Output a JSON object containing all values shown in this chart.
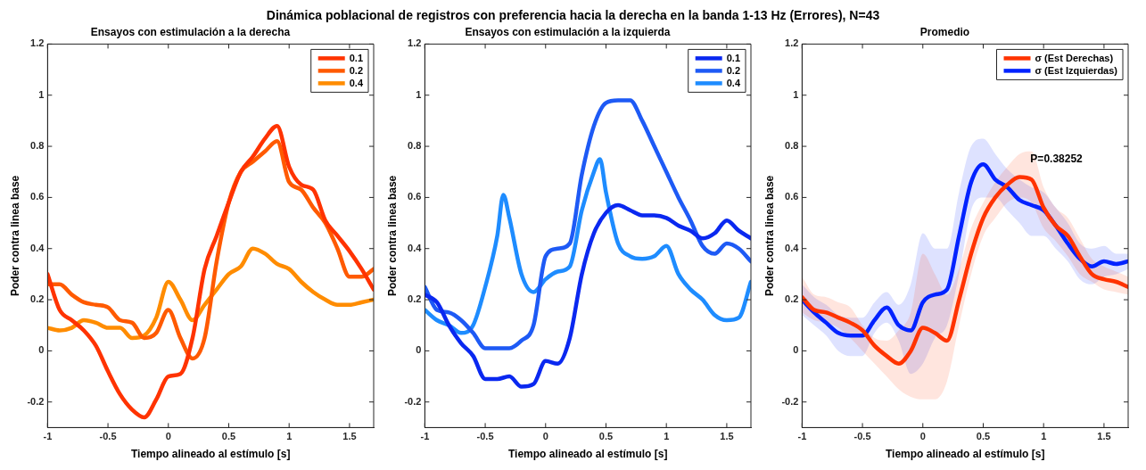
{
  "chart_data": [
    {
      "type": "line",
      "title": "Dinámica poblacional de registros con preferencia hacia la derecha en la banda 1-13 Hz (Errores), N=43",
      "subtitle": "Ensayos con estimulación a la derecha",
      "xlabel": "Tiempo alineado al estímulo [s]",
      "ylabel": "Poder contra linea base",
      "x": [
        -1,
        -0.9,
        -0.8,
        -0.7,
        -0.6,
        -0.5,
        -0.4,
        -0.3,
        -0.2,
        -0.1,
        0,
        0.1,
        0.2,
        0.3,
        0.4,
        0.5,
        0.6,
        0.7,
        0.8,
        0.9,
        1,
        1.1,
        1.2,
        1.3,
        1.4,
        1.5,
        1.6,
        1.7
      ],
      "series": [
        {
          "name": "0.1",
          "color": "#ff3300",
          "values": [
            0.3,
            0.16,
            0.12,
            0.08,
            0.02,
            -0.08,
            -0.17,
            -0.23,
            -0.26,
            -0.19,
            -0.1,
            -0.09,
            0.05,
            0.32,
            0.45,
            0.58,
            0.7,
            0.76,
            0.83,
            0.88,
            0.72,
            0.65,
            0.63,
            0.51,
            0.45,
            0.39,
            0.32,
            0.24
          ]
        },
        {
          "name": "0.2",
          "color": "#ff5a00",
          "values": [
            0.26,
            0.26,
            0.22,
            0.19,
            0.18,
            0.17,
            0.12,
            0.11,
            0.05,
            0.07,
            0.16,
            0.05,
            -0.03,
            0.05,
            0.35,
            0.58,
            0.7,
            0.74,
            0.78,
            0.82,
            0.66,
            0.63,
            0.56,
            0.5,
            0.4,
            0.29,
            0.29,
            0.32
          ]
        },
        {
          "name": "0.4",
          "color": "#ff8c00",
          "values": [
            0.09,
            0.08,
            0.09,
            0.12,
            0.11,
            0.09,
            0.09,
            0.05,
            0.06,
            0.13,
            0.27,
            0.2,
            0.12,
            0.18,
            0.24,
            0.3,
            0.33,
            0.4,
            0.38,
            0.34,
            0.32,
            0.27,
            0.23,
            0.2,
            0.18,
            0.18,
            0.19,
            0.2
          ]
        }
      ],
      "xlim": [
        -1,
        1.7
      ],
      "ylim": [
        -0.3,
        1.2
      ],
      "xticks": [
        -1,
        -0.5,
        0,
        0.5,
        1,
        1.5
      ],
      "yticks": [
        -0.2,
        0,
        0.2,
        0.4,
        0.6,
        0.8,
        1,
        1.2
      ],
      "grid": false,
      "legend": "top right",
      "marker": "none",
      "line_style": "solid"
    },
    {
      "type": "line",
      "subtitle": "Ensayos con estimulación a la izquierda",
      "xlabel": "Tiempo alineado al estímulo [s]",
      "ylabel": "Poder contra linea base",
      "x": [
        -1,
        -0.9,
        -0.8,
        -0.7,
        -0.6,
        -0.5,
        -0.4,
        -0.3,
        -0.2,
        -0.1,
        0,
        0.1,
        0.2,
        0.3,
        0.4,
        0.5,
        0.6,
        0.7,
        0.8,
        0.9,
        1,
        1.1,
        1.2,
        1.3,
        1.4,
        1.5,
        1.6,
        1.7
      ],
      "series": [
        {
          "name": "0.1",
          "color": "#0a28f0",
          "values": [
            0.22,
            0.19,
            0.1,
            0.03,
            -0.02,
            -0.11,
            -0.11,
            -0.1,
            -0.14,
            -0.13,
            -0.04,
            -0.05,
            0.05,
            0.3,
            0.46,
            0.54,
            0.57,
            0.55,
            0.53,
            0.53,
            0.52,
            0.49,
            0.47,
            0.44,
            0.46,
            0.51,
            0.47,
            0.44
          ]
        },
        {
          "name": "0.2",
          "color": "#1e5af5",
          "values": [
            0.25,
            0.16,
            0.15,
            0.12,
            0.07,
            0.01,
            0.01,
            0.01,
            0.04,
            0.1,
            0.37,
            0.4,
            0.42,
            0.69,
            0.88,
            0.97,
            0.98,
            0.98,
            0.9,
            0.8,
            0.7,
            0.6,
            0.51,
            0.41,
            0.38,
            0.42,
            0.4,
            0.35
          ]
        },
        {
          "name": "0.4",
          "color": "#1e8cff",
          "x": [
            -1,
            -0.9,
            -0.8,
            -0.7,
            -0.6,
            -0.5,
            -0.4,
            -0.35,
            -0.3,
            -0.2,
            -0.1,
            0,
            0.1,
            0.2,
            0.3,
            0.4,
            0.45,
            0.5,
            0.6,
            0.7,
            0.8,
            0.9,
            1,
            1.1,
            1.2,
            1.3,
            1.4,
            1.5,
            1.6,
            1.7
          ],
          "values": [
            0.16,
            0.12,
            0.1,
            0.07,
            0.1,
            0.25,
            0.45,
            0.61,
            0.52,
            0.3,
            0.23,
            0.28,
            0.31,
            0.33,
            0.55,
            0.7,
            0.75,
            0.62,
            0.42,
            0.37,
            0.36,
            0.37,
            0.41,
            0.3,
            0.24,
            0.2,
            0.14,
            0.12,
            0.13,
            0.27
          ]
        }
      ],
      "xlim": [
        -1,
        1.7
      ],
      "ylim": [
        -0.3,
        1.2
      ],
      "xticks": [
        -1,
        -0.5,
        0,
        0.5,
        1,
        1.5
      ],
      "yticks": [
        -0.2,
        0,
        0.2,
        0.4,
        0.6,
        0.8,
        1,
        1.2
      ],
      "grid": false,
      "legend": "top right",
      "marker": "none",
      "line_style": "solid"
    },
    {
      "type": "line",
      "subtitle": "Promedio",
      "xlabel": "Tiempo alineado al estímulo [s]",
      "ylabel": "Poder contra linea base",
      "annotations": [
        "P=0.38252"
      ],
      "x": [
        -1,
        -0.9,
        -0.8,
        -0.7,
        -0.6,
        -0.5,
        -0.4,
        -0.3,
        -0.2,
        -0.1,
        0,
        0.1,
        0.2,
        0.3,
        0.4,
        0.5,
        0.6,
        0.7,
        0.8,
        0.9,
        1,
        1.1,
        1.2,
        1.3,
        1.4,
        1.5,
        1.6,
        1.7
      ],
      "series": [
        {
          "name": "σ (Est Derechas)",
          "color": "#ff3300",
          "values": [
            0.21,
            0.16,
            0.15,
            0.13,
            0.11,
            0.08,
            0.02,
            -0.02,
            -0.05,
            0.0,
            0.09,
            0.07,
            0.04,
            0.2,
            0.38,
            0.52,
            0.6,
            0.65,
            0.68,
            0.67,
            0.56,
            0.49,
            0.45,
            0.37,
            0.3,
            0.28,
            0.27,
            0.25
          ],
          "lower": [
            0.15,
            0.12,
            0.11,
            0.09,
            0.05,
            0.0,
            -0.05,
            -0.1,
            -0.15,
            -0.18,
            -0.19,
            -0.19,
            -0.12,
            0.1,
            0.3,
            0.45,
            0.52,
            0.58,
            0.6,
            0.58,
            0.48,
            0.43,
            0.37,
            0.3,
            0.27,
            0.24,
            0.23,
            0.22
          ],
          "upper": [
            0.29,
            0.22,
            0.21,
            0.19,
            0.17,
            0.1,
            0.05,
            0.04,
            0.08,
            0.15,
            0.38,
            0.3,
            0.22,
            0.32,
            0.48,
            0.58,
            0.66,
            0.72,
            0.77,
            0.78,
            0.64,
            0.56,
            0.52,
            0.44,
            0.36,
            0.33,
            0.31,
            0.29
          ]
        },
        {
          "name": "σ (Est Izquierdas)",
          "color": "#0022ff",
          "values": [
            0.2,
            0.15,
            0.11,
            0.07,
            0.06,
            0.06,
            0.12,
            0.17,
            0.1,
            0.08,
            0.19,
            0.22,
            0.24,
            0.45,
            0.66,
            0.73,
            0.67,
            0.64,
            0.59,
            0.57,
            0.55,
            0.49,
            0.42,
            0.36,
            0.33,
            0.35,
            0.34,
            0.35
          ],
          "lower": [
            0.14,
            0.1,
            0.06,
            0.0,
            -0.02,
            -0.02,
            0.07,
            0.11,
            0.04,
            -0.09,
            -0.05,
            0.05,
            0.1,
            0.3,
            0.55,
            0.6,
            0.6,
            0.55,
            0.5,
            0.45,
            0.45,
            0.4,
            0.35,
            0.28,
            0.26,
            0.29,
            0.3,
            0.32
          ],
          "upper": [
            0.26,
            0.21,
            0.18,
            0.14,
            0.13,
            0.13,
            0.19,
            0.23,
            0.18,
            0.26,
            0.46,
            0.4,
            0.4,
            0.62,
            0.8,
            0.83,
            0.77,
            0.71,
            0.67,
            0.64,
            0.62,
            0.56,
            0.5,
            0.42,
            0.4,
            0.41,
            0.38,
            0.38
          ]
        }
      ],
      "xlim": [
        -1,
        1.7
      ],
      "ylim": [
        -0.3,
        1.2
      ],
      "xticks": [
        -1,
        -0.5,
        0,
        0.5,
        1,
        1.5
      ],
      "yticks": [
        -0.2,
        0,
        0.2,
        0.4,
        0.6,
        0.8,
        1,
        1.2
      ],
      "grid": false,
      "legend": "top right",
      "marker": "none",
      "line_style": "solid"
    }
  ]
}
